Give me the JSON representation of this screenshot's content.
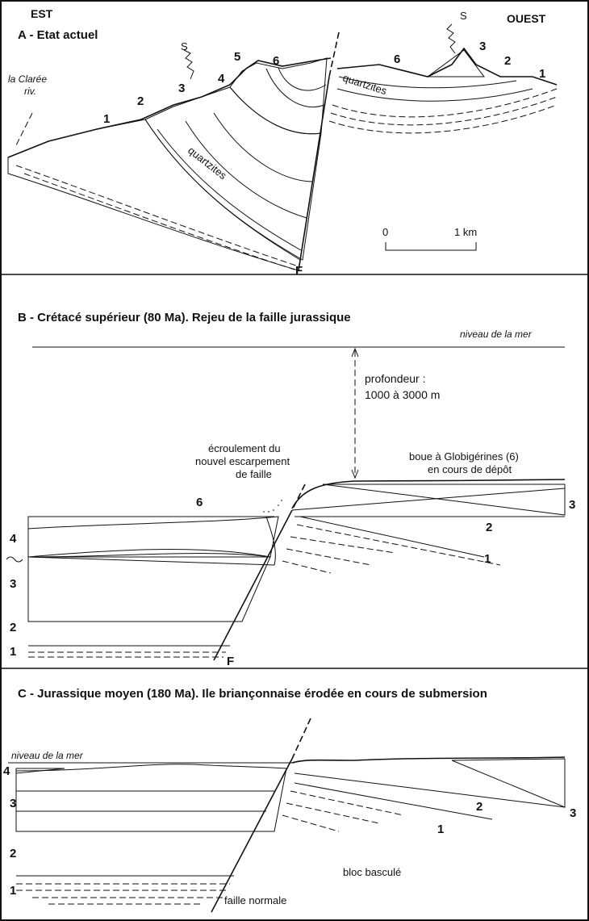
{
  "panel_a": {
    "east": "EST",
    "west": "OUEST",
    "title": "A - Etat actuel",
    "river": [
      "la Clarée",
      "riv."
    ],
    "layers_left": [
      "1",
      "2",
      "3",
      "4",
      "5",
      "6"
    ],
    "layers_right": [
      "6",
      "3",
      "2",
      "1"
    ],
    "erosion": [
      "S",
      "S"
    ],
    "rock": [
      "quartzites",
      "quartzites"
    ],
    "scale": [
      "0",
      "1 km"
    ],
    "fault": "F"
  },
  "panel_b": {
    "title": "B - Crétacé supérieur (80 Ma). Rejeu de la faille jurassique",
    "sea_level": "niveau de la mer",
    "depth": [
      "profondeur :",
      "1000 à 3000 m"
    ],
    "collapse": [
      "écroulement du",
      "nouvel escarpement",
      "de faille"
    ],
    "ooze": [
      "boue à Globigérines (6)",
      "en cours de dépôt"
    ],
    "layers_left": [
      "6",
      "4",
      "3",
      "2",
      "1"
    ],
    "layers_right": [
      "3",
      "2",
      "1"
    ],
    "fault": "F"
  },
  "panel_c": {
    "title": "C - Jurassique moyen (180 Ma). Ile briançonnaise érodée en cours de submersion",
    "sea_level": "niveau de la mer",
    "layers_left": [
      "4",
      "3",
      "2",
      "1"
    ],
    "layers_right": [
      "2",
      "1",
      "3"
    ],
    "block": "bloc basculé",
    "fault": "faille normale"
  }
}
